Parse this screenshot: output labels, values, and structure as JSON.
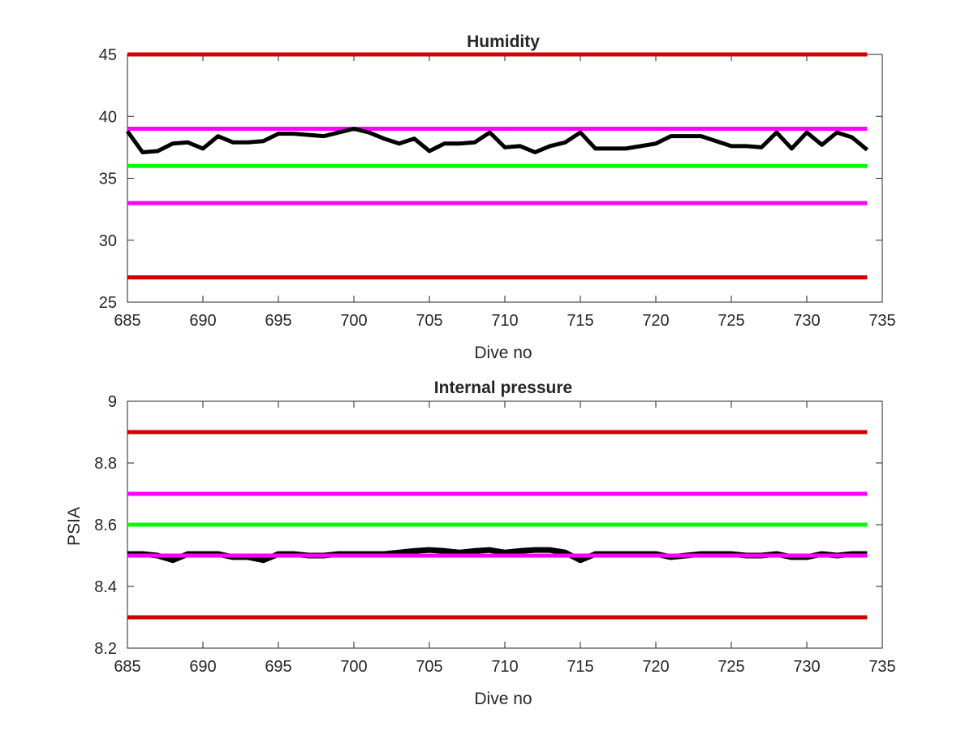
{
  "figure": {
    "background": "#ffffff",
    "axis_color": "#262626"
  },
  "chart_data": [
    {
      "type": "line",
      "title": "Humidity",
      "xlabel": "Dive no",
      "ylabel": "",
      "xlim": [
        685,
        735
      ],
      "ylim": [
        25,
        45
      ],
      "xticks": [
        685,
        690,
        695,
        700,
        705,
        710,
        715,
        720,
        725,
        730,
        735
      ],
      "yticks": [
        25,
        30,
        35,
        40,
        45
      ],
      "grid": false,
      "thresholds": [
        {
          "value": 45,
          "color": "#d00000"
        },
        {
          "value": 39,
          "color": "#ff00ff"
        },
        {
          "value": 36,
          "color": "#00ff00"
        },
        {
          "value": 33,
          "color": "#ff00ff"
        },
        {
          "value": 27,
          "color": "#d00000"
        }
      ],
      "series": [
        {
          "color": "#000000",
          "x": [
            685,
            686,
            687,
            688,
            689,
            690,
            691,
            692,
            693,
            694,
            695,
            696,
            697,
            698,
            699,
            700,
            701,
            702,
            703,
            704,
            705,
            706,
            707,
            708,
            709,
            710,
            711,
            712,
            713,
            714,
            715,
            716,
            717,
            718,
            719,
            720,
            721,
            722,
            723,
            724,
            725,
            726,
            727,
            728,
            729,
            730,
            731,
            732,
            733,
            734
          ],
          "values": [
            38.8,
            37.1,
            37.2,
            37.8,
            37.9,
            37.4,
            38.4,
            37.9,
            37.9,
            38.0,
            38.6,
            38.6,
            38.5,
            38.4,
            38.7,
            39.0,
            38.7,
            38.2,
            37.8,
            38.2,
            37.2,
            37.8,
            37.8,
            37.9,
            38.7,
            37.5,
            37.6,
            37.1,
            37.6,
            37.9,
            38.7,
            37.4,
            37.4,
            37.4,
            37.6,
            37.8,
            38.4,
            38.4,
            38.4,
            38.0,
            37.6,
            37.6,
            37.5,
            38.7,
            37.4,
            38.7,
            37.7,
            38.7,
            38.3,
            37.3
          ]
        }
      ]
    },
    {
      "type": "line",
      "title": "Internal pressure",
      "xlabel": "Dive no",
      "ylabel": "PSIA",
      "xlim": [
        685,
        735
      ],
      "ylim": [
        8.2,
        9.0
      ],
      "xticks": [
        685,
        690,
        695,
        700,
        705,
        710,
        715,
        720,
        725,
        730,
        735
      ],
      "yticks": [
        8.2,
        8.4,
        8.6,
        8.8,
        9.0
      ],
      "ytick_labels": [
        "8.2",
        "8.4",
        "8.6",
        "8.8",
        "9"
      ],
      "grid": false,
      "thresholds": [
        {
          "value": 8.9,
          "color": "#d00000"
        },
        {
          "value": 8.7,
          "color": "#ff00ff"
        },
        {
          "value": 8.6,
          "color": "#00ff00"
        },
        {
          "value": 8.5,
          "color": "#ff00ff"
        },
        {
          "value": 8.3,
          "color": "#d00000"
        }
      ],
      "series": [
        {
          "color": "#000000",
          "x": [
            685,
            686,
            687,
            688,
            689,
            690,
            691,
            692,
            693,
            694,
            695,
            696,
            697,
            698,
            699,
            700,
            701,
            702,
            703,
            704,
            705,
            706,
            707,
            708,
            709,
            710,
            711,
            712,
            713,
            714,
            715,
            716,
            717,
            718,
            719,
            720,
            721,
            722,
            723,
            724,
            725,
            726,
            727,
            728,
            729,
            730,
            731,
            732,
            733,
            734
          ],
          "values": [
            8.505,
            8.505,
            8.5,
            8.485,
            8.505,
            8.505,
            8.505,
            8.495,
            8.495,
            8.485,
            8.505,
            8.505,
            8.5,
            8.5,
            8.505,
            8.505,
            8.505,
            8.505,
            8.51,
            8.515,
            8.518,
            8.515,
            8.51,
            8.515,
            8.518,
            8.51,
            8.515,
            8.518,
            8.518,
            8.51,
            8.485,
            8.505,
            8.505,
            8.505,
            8.505,
            8.505,
            8.495,
            8.5,
            8.505,
            8.505,
            8.505,
            8.5,
            8.5,
            8.505,
            8.495,
            8.495,
            8.505,
            8.5,
            8.505,
            8.505
          ]
        }
      ]
    }
  ]
}
